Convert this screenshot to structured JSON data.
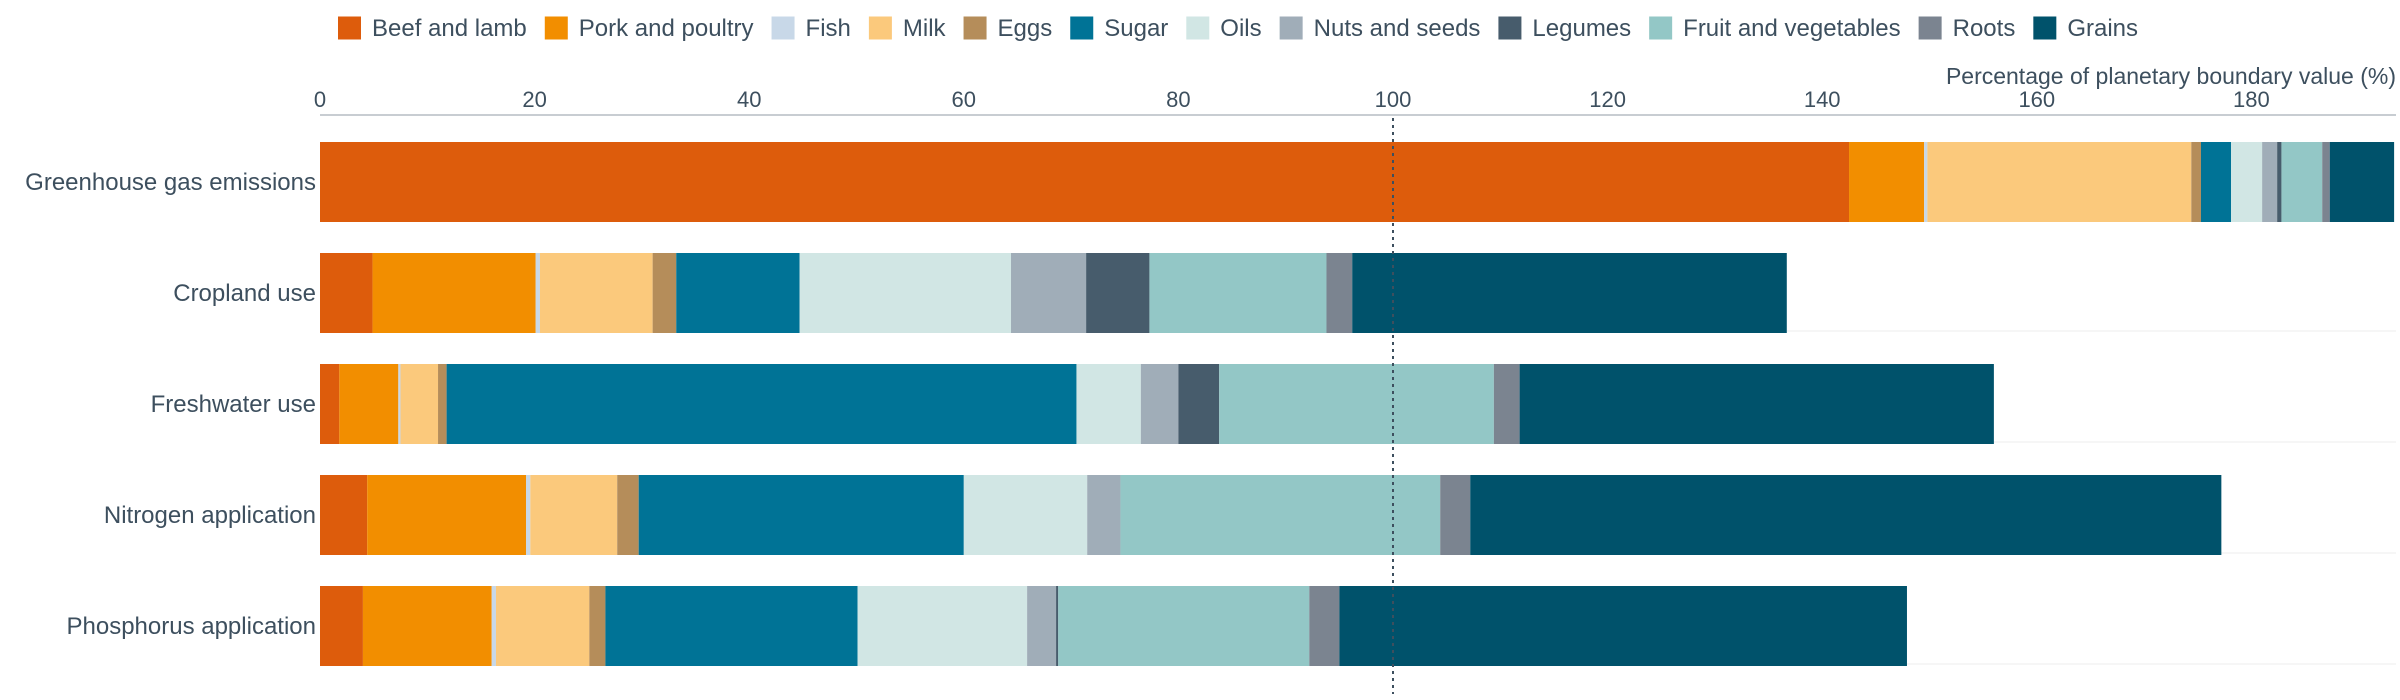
{
  "chart_data": {
    "type": "bar",
    "orientation": "horizontal",
    "stacked": true,
    "xlabel": "Percentage of planetary boundary value (%)",
    "xlim": [
      0,
      193
    ],
    "x_ticks": [
      "0",
      "20",
      "40",
      "60",
      "80",
      "100",
      "120",
      "140",
      "160",
      "180"
    ],
    "reference_line": 100,
    "legend_position": "top",
    "categories": [
      "Greenhouse gas emissions",
      "Cropland use",
      "Freshwater use",
      "Nitrogen application",
      "Phosphorus application"
    ],
    "series": [
      {
        "name": "Beef and lamb",
        "color": "#dd5c0c",
        "values": [
          142.5,
          4.9,
          1.8,
          4.4,
          4.0
        ]
      },
      {
        "name": "Pork and poultry",
        "color": "#f28e00",
        "values": [
          7.0,
          15.2,
          5.5,
          14.8,
          12.0
        ]
      },
      {
        "name": "Fish",
        "color": "#c8d8e8",
        "values": [
          0.3,
          0.4,
          0.2,
          0.4,
          0.4
        ]
      },
      {
        "name": "Milk",
        "color": "#fbc97c",
        "values": [
          24.6,
          10.5,
          3.5,
          8.1,
          8.7
        ]
      },
      {
        "name": "Eggs",
        "color": "#b58d5a",
        "values": [
          0.9,
          2.2,
          0.8,
          2.0,
          1.5
        ]
      },
      {
        "name": "Sugar",
        "color": "#007396",
        "values": [
          2.8,
          11.5,
          58.7,
          30.3,
          23.5
        ]
      },
      {
        "name": "Oils",
        "color": "#d1e6e4",
        "values": [
          2.9,
          19.7,
          6.0,
          11.5,
          15.8
        ]
      },
      {
        "name": "Nuts and seeds",
        "color": "#a0adb8",
        "values": [
          1.4,
          7.0,
          3.5,
          3.1,
          2.7
        ]
      },
      {
        "name": "Legumes",
        "color": "#475c6c",
        "values": [
          0.4,
          5.9,
          3.8,
          0.0,
          0.2
        ]
      },
      {
        "name": "Fruit and vegetables",
        "color": "#93c7c6",
        "values": [
          3.8,
          16.5,
          25.6,
          29.8,
          23.4
        ]
      },
      {
        "name": "Roots",
        "color": "#7b8490",
        "values": [
          0.7,
          2.4,
          2.4,
          2.8,
          2.8
        ]
      },
      {
        "name": "Grains",
        "color": "#00526b",
        "values": [
          6.0,
          40.5,
          44.2,
          70.0,
          52.9
        ]
      }
    ]
  }
}
